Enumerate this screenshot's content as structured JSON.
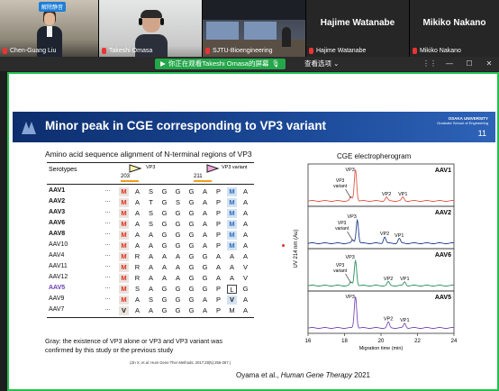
{
  "meeting": {
    "tiles": [
      {
        "name": "Chen-Guang Liu",
        "badge": "解除静音",
        "muted": true
      },
      {
        "name": "Takeshi Omasa",
        "muted": true
      },
      {
        "name": "SJTU-Bioengineering",
        "muted": true
      },
      {
        "name": "Hajime Watanabe",
        "muted": true,
        "header": "Hajime Watanabe"
      },
      {
        "name": "Mikiko Nakano",
        "muted": true,
        "header": "Mikiko Nakano"
      }
    ],
    "share_notice": "你正在观看Takeshi Omasa的屏幕",
    "view_options": "查看选项",
    "share_color": "#23a74a"
  },
  "slide": {
    "title": "Minor peak in CGE corresponding to VP3 variant",
    "univ": [
      "OSAKA UNIVERSITY",
      "Graduate School of Engineering"
    ],
    "page": "11",
    "alignment": {
      "title": "Amino acid sequence alignment of N-terminal regions of VP3",
      "header": "Serotypes",
      "vp3_label": "VP3",
      "vp3v_label": "VP3 variant",
      "pos1": "203",
      "pos2": "211",
      "rows": [
        {
          "s": "AAV1",
          "style": "b",
          "seq": [
            "M",
            "A",
            "S",
            "G",
            "G",
            "G",
            "A",
            "P",
            "M",
            "A"
          ],
          "hl": [
            0,
            8
          ],
          "hl2": [
            8
          ]
        },
        {
          "s": "AAV2",
          "style": "b",
          "seq": [
            "M",
            "A",
            "T",
            "G",
            "S",
            "G",
            "A",
            "P",
            "M",
            "A"
          ],
          "hl": [
            0
          ],
          "hl2": [
            8
          ]
        },
        {
          "s": "AAV3",
          "style": "b",
          "seq": [
            "M",
            "A",
            "S",
            "G",
            "G",
            "G",
            "A",
            "P",
            "M",
            "A"
          ],
          "hl": [
            0
          ],
          "hl2": [
            8
          ]
        },
        {
          "s": "AAV6",
          "style": "b",
          "seq": [
            "M",
            "A",
            "S",
            "G",
            "G",
            "G",
            "A",
            "P",
            "M",
            "A"
          ],
          "hl": [
            0
          ],
          "hl2": [
            8
          ]
        },
        {
          "s": "AAV8",
          "style": "b",
          "seq": [
            "M",
            "A",
            "A",
            "G",
            "G",
            "G",
            "A",
            "P",
            "M",
            "A"
          ],
          "hl": [
            0
          ],
          "hl2": [
            8
          ]
        },
        {
          "s": "AAV10",
          "style": "",
          "seq": [
            "M",
            "A",
            "A",
            "G",
            "G",
            "G",
            "A",
            "P",
            "M",
            "A"
          ],
          "hl": [
            0
          ],
          "hl2": [
            8
          ]
        },
        {
          "s": "AAV4",
          "style": "",
          "seq": [
            "M",
            "R",
            "A",
            "A",
            "A",
            "G",
            "G",
            "A",
            "A",
            "A"
          ],
          "hl": [
            0
          ],
          "hl2": []
        },
        {
          "s": "AAV11",
          "style": "",
          "seq": [
            "M",
            "R",
            "A",
            "A",
            "A",
            "G",
            "G",
            "A",
            "A",
            "V"
          ],
          "hl": [
            0
          ],
          "hl2": []
        },
        {
          "s": "AAV12",
          "style": "",
          "seq": [
            "M",
            "R",
            "A",
            "A",
            "A",
            "G",
            "G",
            "A",
            "A",
            "V"
          ],
          "hl": [
            0
          ],
          "hl2": []
        },
        {
          "s": "AAV5",
          "style": "p",
          "seq": [
            "M",
            "S",
            "A",
            "G",
            "G",
            "G",
            "G",
            "P",
            "L",
            "G"
          ],
          "hl": [
            0
          ],
          "hl2": [],
          "box": [
            8
          ]
        },
        {
          "s": "AAV9",
          "style": "",
          "seq": [
            "M",
            "A",
            "S",
            "G",
            "G",
            "G",
            "A",
            "P",
            "V",
            "A"
          ],
          "hl": [
            0
          ],
          "hl2": [],
          "vbox": [
            8
          ]
        },
        {
          "s": "AAV7",
          "style": "",
          "seq": [
            "V",
            "A",
            "A",
            "G",
            "G",
            "G",
            "A",
            "P",
            "M",
            "A"
          ],
          "hl": [],
          "hl2": [],
          "vbold": [
            0
          ]
        }
      ],
      "ellipsis": "…",
      "note_line1": "Gray: the existence of VP3 alone or VP3 and VP3 variant was",
      "note_line2": "confirmed by this study or the previous study",
      "citation": "(Jin X, et al. Hum Gene Ther Methods. 2017;28(5):255-267.)"
    },
    "reference": {
      "authors": "Oyama et al., ",
      "journal": "Human Gene Therapy",
      "year": " 2021"
    },
    "marker_color": "#e03020"
  },
  "chart_data": {
    "type": "line",
    "title": "CGE electropherogram",
    "xlabel": "Migration time (min)",
    "ylabel": "UV 214 nm (Au)",
    "xlim": [
      16,
      24
    ],
    "xticks": [
      "16",
      "18",
      "20",
      "22",
      "24"
    ],
    "panels": [
      {
        "name": "AAV1",
        "color": "#e05a4a",
        "peaks": [
          {
            "x": 18.6,
            "h": 1.0,
            "label": "VP3"
          },
          {
            "x": 18.35,
            "h": 0.12,
            "label": "VP3 variant"
          },
          {
            "x": 20.3,
            "h": 0.12,
            "label": "VP2"
          },
          {
            "x": 21.2,
            "h": 0.12,
            "label": "VP1"
          }
        ]
      },
      {
        "name": "AAV2",
        "color": "#1f3f8f",
        "peaks": [
          {
            "x": 18.7,
            "h": 0.75,
            "label": "VP3"
          },
          {
            "x": 18.45,
            "h": 0.1,
            "label": "VP3 variant"
          },
          {
            "x": 20.2,
            "h": 0.2,
            "label": "VP2"
          },
          {
            "x": 21.0,
            "h": 0.15,
            "label": "VP1"
          }
        ]
      },
      {
        "name": "AAV6",
        "color": "#2f8f5f",
        "peaks": [
          {
            "x": 18.6,
            "h": 0.8,
            "label": "VP3"
          },
          {
            "x": 18.35,
            "h": 0.1,
            "label": "VP3 variant"
          },
          {
            "x": 20.4,
            "h": 0.12,
            "label": "VP2"
          },
          {
            "x": 21.3,
            "h": 0.12,
            "label": "VP1"
          }
        ]
      },
      {
        "name": "AAV5",
        "color": "#7a4bb5",
        "peaks": [
          {
            "x": 18.6,
            "h": 1.0,
            "label": "VP3"
          },
          {
            "x": 20.4,
            "h": 0.18,
            "label": "VP2"
          },
          {
            "x": 21.3,
            "h": 0.15,
            "label": "VP1"
          }
        ]
      }
    ]
  }
}
